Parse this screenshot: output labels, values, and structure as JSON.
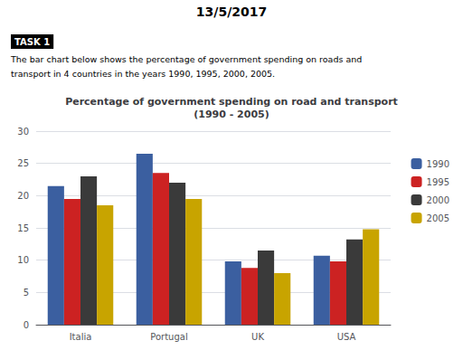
{
  "chart_data": {
    "type": "bar",
    "title": "Percentage of government spending on road and transport\n(1990 - 2005)",
    "annotations": [
      "13/5/2017",
      "TASK 1",
      "The bar chart below shows the percentage of government spending on roads and",
      "transport in 4 countries in the years 1990, 1995, 2000, 2005."
    ],
    "categories": [
      "Italia",
      "Portugal",
      "UK",
      "USA"
    ],
    "series": [
      {
        "name": "1990",
        "color": "#3b5fa0",
        "values": [
          21.5,
          26.5,
          9.8,
          10.7
        ]
      },
      {
        "name": "1995",
        "color": "#cc2222",
        "values": [
          19.5,
          23.5,
          8.8,
          9.8
        ]
      },
      {
        "name": "2000",
        "color": "#3a3a3a",
        "values": [
          23.0,
          22.0,
          11.5,
          13.2
        ]
      },
      {
        "name": "2005",
        "color": "#c8a400",
        "values": [
          18.5,
          19.5,
          8.0,
          14.8
        ]
      }
    ],
    "ylim": [
      0,
      30
    ],
    "yticks": [
      0,
      5,
      10,
      15,
      20,
      25,
      30
    ],
    "grid": true,
    "legend": "right"
  }
}
